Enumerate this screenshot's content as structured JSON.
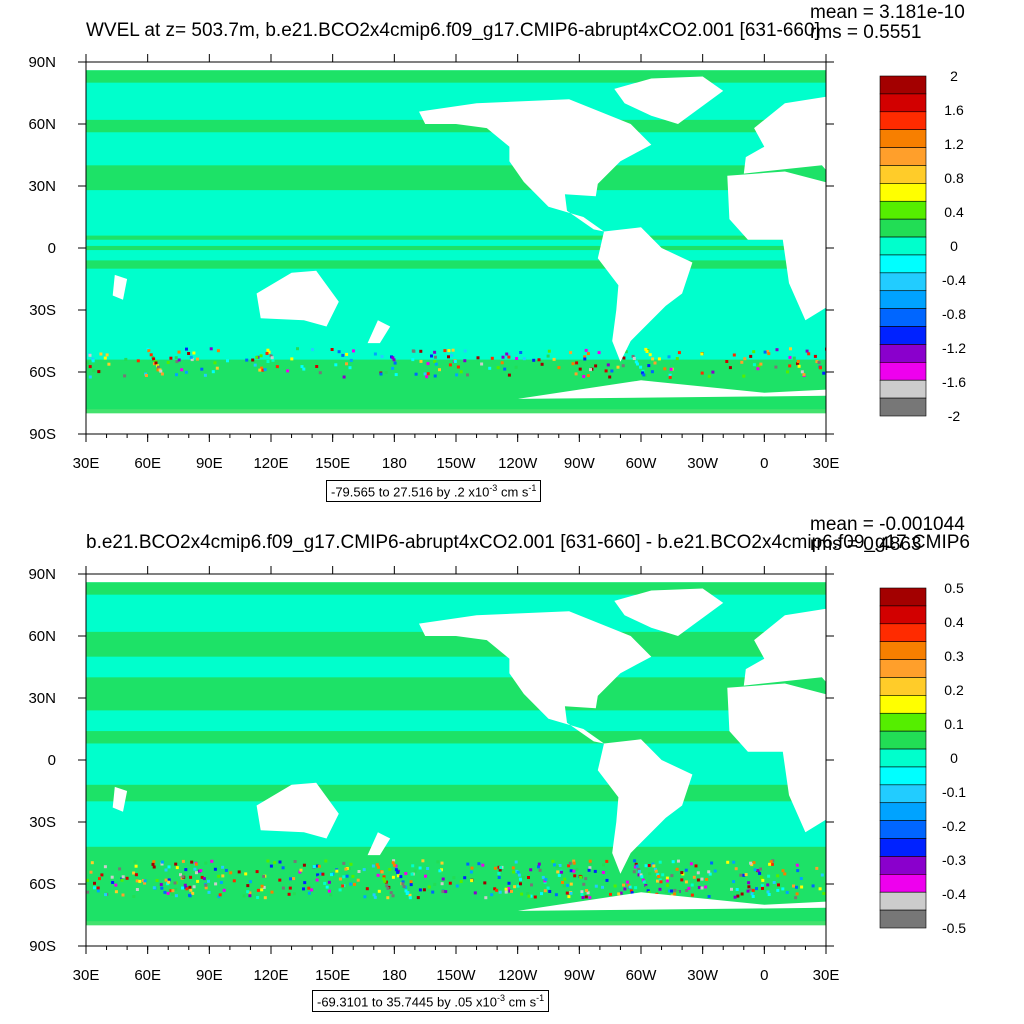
{
  "chart_data": [
    {
      "type": "heatmap",
      "title": "WVEL at z= 503.7m, b.e21.BCO2x4cmip6.f09_g17.CMIP6-abrupt4xCO2.001 [631-660]",
      "mean_label": "mean = 3.181e-10",
      "rms_label": "rms = 0.5551",
      "x_ticks": [
        "30E",
        "60E",
        "90E",
        "120E",
        "150E",
        "180",
        "150W",
        "120W",
        "90W",
        "60W",
        "30W",
        "0",
        "30E"
      ],
      "y_ticks": [
        "90N",
        "60N",
        "30N",
        "0",
        "30S",
        "60S",
        "90S"
      ],
      "colorbar_labels": [
        "2",
        "1.6",
        "1.2",
        "0.8",
        "0.4",
        "0",
        "-0.4",
        "-0.8",
        "-1.2",
        "-1.6",
        "-2"
      ],
      "colorbar_colors": [
        "#a30000",
        "#d20000",
        "#ff2b00",
        "#f77f00",
        "#ff9f2b",
        "#ffcc29",
        "#ffff00",
        "#55ee00",
        "#22dd55",
        "#00ffcc",
        "#00ffff",
        "#22ccff",
        "#00a3ff",
        "#0066ff",
        "#0022ff",
        "#8a00cc",
        "#ee00ee",
        "#cccccc",
        "#777777"
      ],
      "range_text": "-79.565 to 27.516 by .2",
      "range_units": "x10",
      "range_exp": "-3",
      "range_units2": " cm s",
      "range_exp2": "-1"
    },
    {
      "type": "heatmap",
      "title": "b.e21.BCO2x4cmip6.f09_g17.CMIP6-abrupt4xCO2.001 [631-660] - b.e21.BCO2x4cmip6.f09_g17.CMIP6",
      "mean_label": "mean = -0.001044",
      "rms_label": "rms = 0.4863",
      "x_ticks": [
        "30E",
        "60E",
        "90E",
        "120E",
        "150E",
        "180",
        "150W",
        "120W",
        "90W",
        "60W",
        "30W",
        "0",
        "30E"
      ],
      "y_ticks": [
        "90N",
        "60N",
        "30N",
        "0",
        "30S",
        "60S",
        "90S"
      ],
      "colorbar_labels": [
        "0.5",
        "0.4",
        "0.3",
        "0.2",
        "0.1",
        "0",
        "-0.1",
        "-0.2",
        "-0.3",
        "-0.4",
        "-0.5"
      ],
      "colorbar_colors": [
        "#a30000",
        "#d20000",
        "#ff2b00",
        "#f77f00",
        "#ff9f2b",
        "#ffcc29",
        "#ffff00",
        "#55ee00",
        "#22dd55",
        "#00ffcc",
        "#00ffff",
        "#22ccff",
        "#00a3ff",
        "#0066ff",
        "#0022ff",
        "#8a00cc",
        "#ee00ee",
        "#cccccc",
        "#777777"
      ],
      "range_text": "-69.3101 to 35.7445 by .05",
      "range_units": "x10",
      "range_exp": "-3",
      "range_units2": " cm s",
      "range_exp2": "-1"
    }
  ],
  "colors": {
    "ocean_base": "#00ffcc",
    "ocean_band": "#22dd55",
    "land": "#ffffff"
  }
}
